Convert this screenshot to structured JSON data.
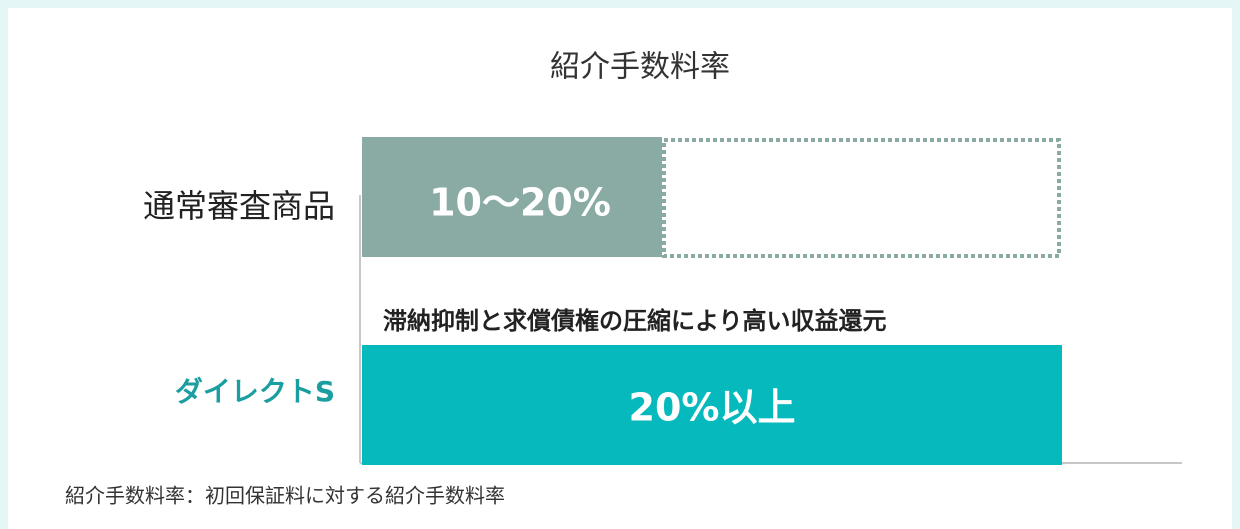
{
  "title": "紹介手数料率",
  "rows": [
    {
      "label": "通常審査商品",
      "bar_label": "10〜20%"
    },
    {
      "label": "ダイレクトS",
      "bar_label": "20%以上",
      "annotation": "滞納抑制と求償債権の圧縮により高い収益還元"
    }
  ],
  "footnote": "紹介手数料率：初回保証料に対する紹介手数料率"
}
